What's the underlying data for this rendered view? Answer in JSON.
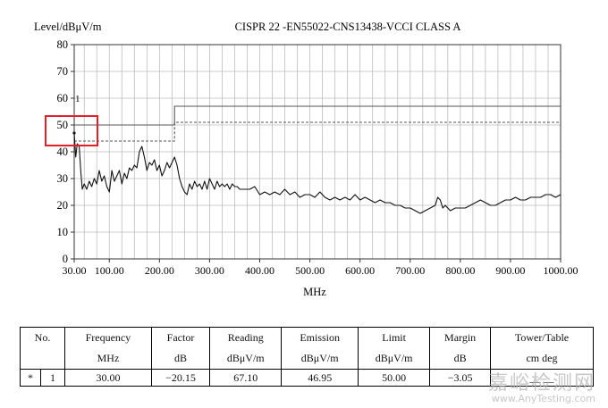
{
  "chart_data": {
    "type": "line",
    "title": "CISPR 22 -EN55022-CNS13438-VCCI CLASS A",
    "ylabel": "Level/dBμV/m",
    "xlabel": "MHz",
    "xlim": [
      30,
      1000
    ],
    "ylim": [
      0,
      80
    ],
    "x_ticks": [
      "30.00",
      "100.00",
      "200.00",
      "300.00",
      "400.00",
      "500.00",
      "600.00",
      "700.00",
      "800.00",
      "900.00",
      "1000.00"
    ],
    "x_tick_values": [
      30,
      100,
      200,
      300,
      400,
      500,
      600,
      700,
      800,
      900,
      1000
    ],
    "y_ticks": [
      0,
      10,
      20,
      30,
      40,
      50,
      60,
      70,
      80
    ],
    "grid": true,
    "marker_label": "1",
    "limits": [
      {
        "style": "solid",
        "points": [
          [
            30,
            50
          ],
          [
            230,
            50
          ],
          [
            230,
            57
          ],
          [
            1000,
            57
          ]
        ]
      },
      {
        "style": "dashed",
        "points": [
          [
            30,
            44
          ],
          [
            230,
            44
          ],
          [
            230,
            51
          ],
          [
            1000,
            51
          ]
        ]
      }
    ],
    "series": [
      {
        "values": [
          [
            30,
            47
          ],
          [
            33,
            38
          ],
          [
            36,
            43
          ],
          [
            40,
            42
          ],
          [
            43,
            33
          ],
          [
            46,
            26
          ],
          [
            50,
            28
          ],
          [
            55,
            26
          ],
          [
            60,
            29
          ],
          [
            65,
            27
          ],
          [
            70,
            30
          ],
          [
            75,
            28
          ],
          [
            80,
            33
          ],
          [
            85,
            29
          ],
          [
            90,
            31
          ],
          [
            95,
            27
          ],
          [
            100,
            25
          ],
          [
            105,
            33
          ],
          [
            110,
            29
          ],
          [
            115,
            31
          ],
          [
            120,
            33
          ],
          [
            125,
            28
          ],
          [
            130,
            32
          ],
          [
            135,
            30
          ],
          [
            140,
            34
          ],
          [
            145,
            33
          ],
          [
            150,
            35
          ],
          [
            155,
            34
          ],
          [
            160,
            40
          ],
          [
            165,
            42
          ],
          [
            170,
            38
          ],
          [
            175,
            33
          ],
          [
            180,
            36
          ],
          [
            185,
            35
          ],
          [
            190,
            37
          ],
          [
            195,
            33
          ],
          [
            200,
            35
          ],
          [
            205,
            31
          ],
          [
            210,
            33
          ],
          [
            215,
            36
          ],
          [
            220,
            34
          ],
          [
            225,
            36
          ],
          [
            230,
            38
          ],
          [
            235,
            35
          ],
          [
            240,
            30
          ],
          [
            245,
            27
          ],
          [
            250,
            25
          ],
          [
            255,
            24
          ],
          [
            260,
            28
          ],
          [
            265,
            26
          ],
          [
            270,
            29
          ],
          [
            275,
            27
          ],
          [
            280,
            28
          ],
          [
            285,
            26
          ],
          [
            290,
            29
          ],
          [
            295,
            26
          ],
          [
            300,
            30
          ],
          [
            305,
            28
          ],
          [
            310,
            26
          ],
          [
            315,
            29
          ],
          [
            320,
            27
          ],
          [
            325,
            28
          ],
          [
            330,
            27
          ],
          [
            335,
            28
          ],
          [
            340,
            26
          ],
          [
            345,
            28
          ],
          [
            350,
            27
          ],
          [
            355,
            27
          ],
          [
            360,
            26
          ],
          [
            370,
            26
          ],
          [
            380,
            26
          ],
          [
            390,
            27
          ],
          [
            400,
            24
          ],
          [
            410,
            25
          ],
          [
            420,
            24
          ],
          [
            430,
            25
          ],
          [
            440,
            24
          ],
          [
            450,
            26
          ],
          [
            460,
            24
          ],
          [
            470,
            25
          ],
          [
            480,
            23
          ],
          [
            490,
            24
          ],
          [
            500,
            24
          ],
          [
            510,
            23
          ],
          [
            520,
            25
          ],
          [
            530,
            23
          ],
          [
            540,
            22
          ],
          [
            550,
            23
          ],
          [
            560,
            22
          ],
          [
            570,
            23
          ],
          [
            580,
            22
          ],
          [
            590,
            24
          ],
          [
            600,
            22
          ],
          [
            610,
            23
          ],
          [
            620,
            22
          ],
          [
            630,
            21
          ],
          [
            640,
            22
          ],
          [
            650,
            21
          ],
          [
            660,
            21
          ],
          [
            670,
            20
          ],
          [
            680,
            20
          ],
          [
            690,
            19
          ],
          [
            700,
            19
          ],
          [
            710,
            18
          ],
          [
            720,
            17
          ],
          [
            730,
            18
          ],
          [
            740,
            19
          ],
          [
            750,
            20
          ],
          [
            755,
            23
          ],
          [
            760,
            22
          ],
          [
            765,
            19
          ],
          [
            770,
            20
          ],
          [
            780,
            18
          ],
          [
            790,
            19
          ],
          [
            800,
            19
          ],
          [
            810,
            19
          ],
          [
            820,
            20
          ],
          [
            830,
            21
          ],
          [
            840,
            22
          ],
          [
            850,
            21
          ],
          [
            860,
            20
          ],
          [
            870,
            20
          ],
          [
            880,
            21
          ],
          [
            890,
            22
          ],
          [
            900,
            22
          ],
          [
            910,
            23
          ],
          [
            920,
            22
          ],
          [
            930,
            22
          ],
          [
            940,
            23
          ],
          [
            950,
            23
          ],
          [
            960,
            23
          ],
          [
            970,
            24
          ],
          [
            980,
            24
          ],
          [
            990,
            23
          ],
          [
            1000,
            24
          ]
        ]
      }
    ]
  },
  "table": {
    "headers": [
      "No.",
      "Frequency",
      "Factor",
      "Reading",
      "Emission",
      "Limit",
      "Margin",
      "Tower/Table"
    ],
    "units": [
      "",
      "MHz",
      "dB",
      "dBμV/m",
      "dBμV/m",
      "dBμV/m",
      "dB",
      "cm deg"
    ],
    "rows": [
      {
        "flag": "*",
        "no": "1",
        "frequency": "30.00",
        "factor": "−20.15",
        "reading": "67.10",
        "emission": "46.95",
        "limit": "50.00",
        "margin": "−3.05",
        "tower_table": "__ __"
      }
    ]
  },
  "watermark": {
    "line1": "嘉峪检测网",
    "line2": "www.AnyTesting.com"
  },
  "colors": {
    "trace": "#111111",
    "grid": "#bdbdbd",
    "highlight": "#e0202a"
  }
}
